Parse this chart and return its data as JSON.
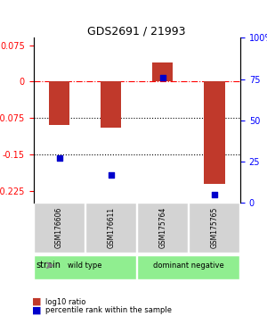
{
  "title": "GDS2691 / 21993",
  "samples": [
    "GSM176606",
    "GSM176611",
    "GSM175764",
    "GSM175765"
  ],
  "log10_ratio": [
    -0.09,
    -0.095,
    0.04,
    -0.21
  ],
  "percentile_rank": [
    27,
    17,
    76,
    5
  ],
  "groups": [
    {
      "name": "wild type",
      "indices": [
        0,
        1
      ],
      "color": "#90ee90"
    },
    {
      "name": "dominant negative",
      "indices": [
        2,
        3
      ],
      "color": "#90ee90"
    }
  ],
  "bar_color": "#c0392b",
  "dot_color": "#0000cc",
  "ylim_left": [
    -0.25,
    0.09
  ],
  "ylim_right": [
    0,
    100
  ],
  "left_ticks": [
    0.075,
    0,
    -0.075,
    -0.15,
    -0.225
  ],
  "right_ticks": [
    100,
    75,
    50,
    25,
    0
  ],
  "hlines": [
    0,
    -0.075,
    -0.15
  ],
  "hline_styles": [
    "dashdot",
    "dotted",
    "dotted"
  ],
  "hline_colors": [
    "red",
    "black",
    "black"
  ],
  "group_label": "strain",
  "legend_bar_label": "log10 ratio",
  "legend_dot_label": "percentile rank within the sample"
}
